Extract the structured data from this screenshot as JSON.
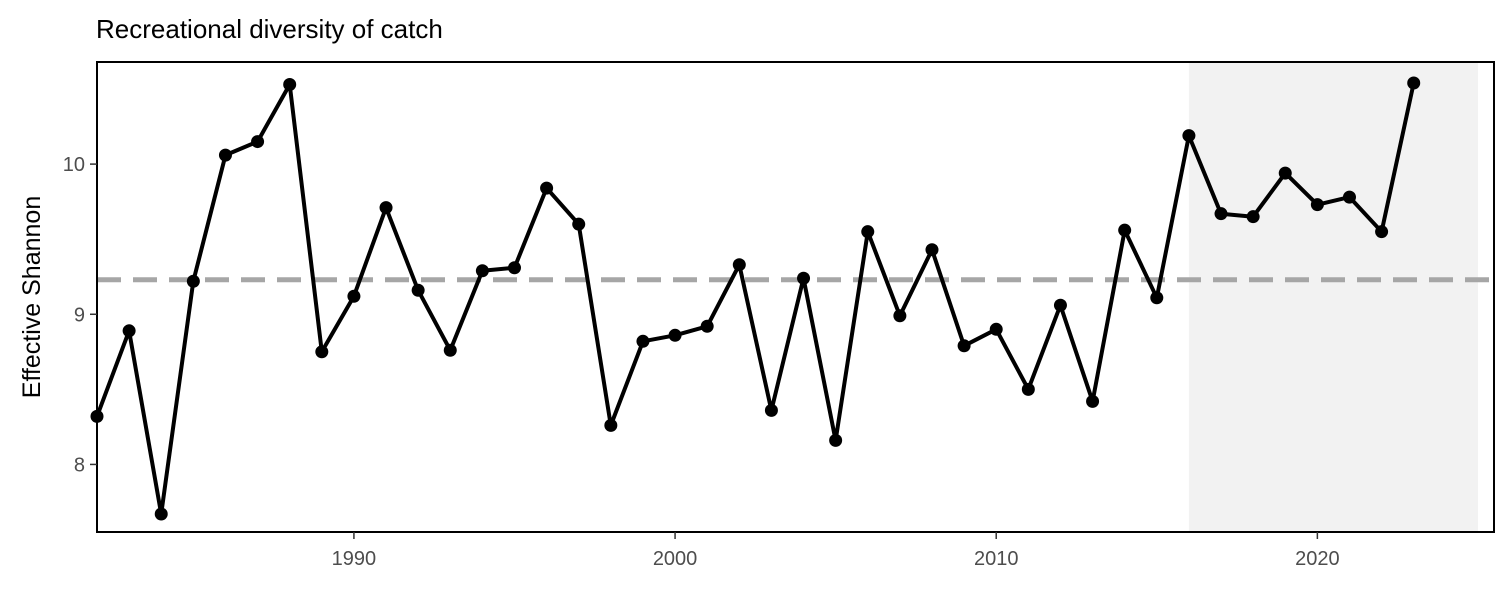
{
  "chart_data": {
    "type": "line",
    "title": "Recreational diversity of catch",
    "xlabel": "",
    "ylabel": "Effective Shannon",
    "xlim": [
      1982,
      2025.5
    ],
    "ylim": [
      7.55,
      10.68
    ],
    "xticks": [
      1990,
      2000,
      2010,
      2020
    ],
    "yticks": [
      8,
      9,
      10
    ],
    "grid": false,
    "legend": "none",
    "shaded_region": {
      "x_start": 2016,
      "x_end": 2025,
      "color": "#f2f2f2"
    },
    "reference_line": {
      "y": 9.23,
      "style": "dashed",
      "color": "#a6a6a6"
    },
    "series": [
      {
        "color": "#000000",
        "x": [
          1982,
          1983,
          1984,
          1985,
          1986,
          1987,
          1988,
          1989,
          1990,
          1991,
          1992,
          1993,
          1994,
          1995,
          1996,
          1997,
          1998,
          1999,
          2000,
          2001,
          2002,
          2003,
          2004,
          2005,
          2006,
          2007,
          2008,
          2009,
          2010,
          2011,
          2012,
          2013,
          2014,
          2015,
          2016,
          2017,
          2018,
          2019,
          2020,
          2021,
          2022,
          2023
        ],
        "y": [
          8.32,
          8.89,
          7.67,
          9.22,
          10.06,
          10.15,
          10.53,
          8.75,
          9.12,
          9.71,
          9.16,
          8.76,
          9.29,
          9.31,
          9.84,
          9.6,
          8.26,
          8.82,
          8.86,
          8.92,
          9.33,
          8.36,
          9.24,
          8.16,
          9.55,
          8.99,
          9.43,
          8.79,
          8.9,
          8.5,
          9.06,
          8.42,
          9.56,
          9.11,
          10.19,
          9.67,
          9.65,
          9.94,
          9.73,
          9.78,
          9.55,
          10.54
        ]
      }
    ]
  }
}
